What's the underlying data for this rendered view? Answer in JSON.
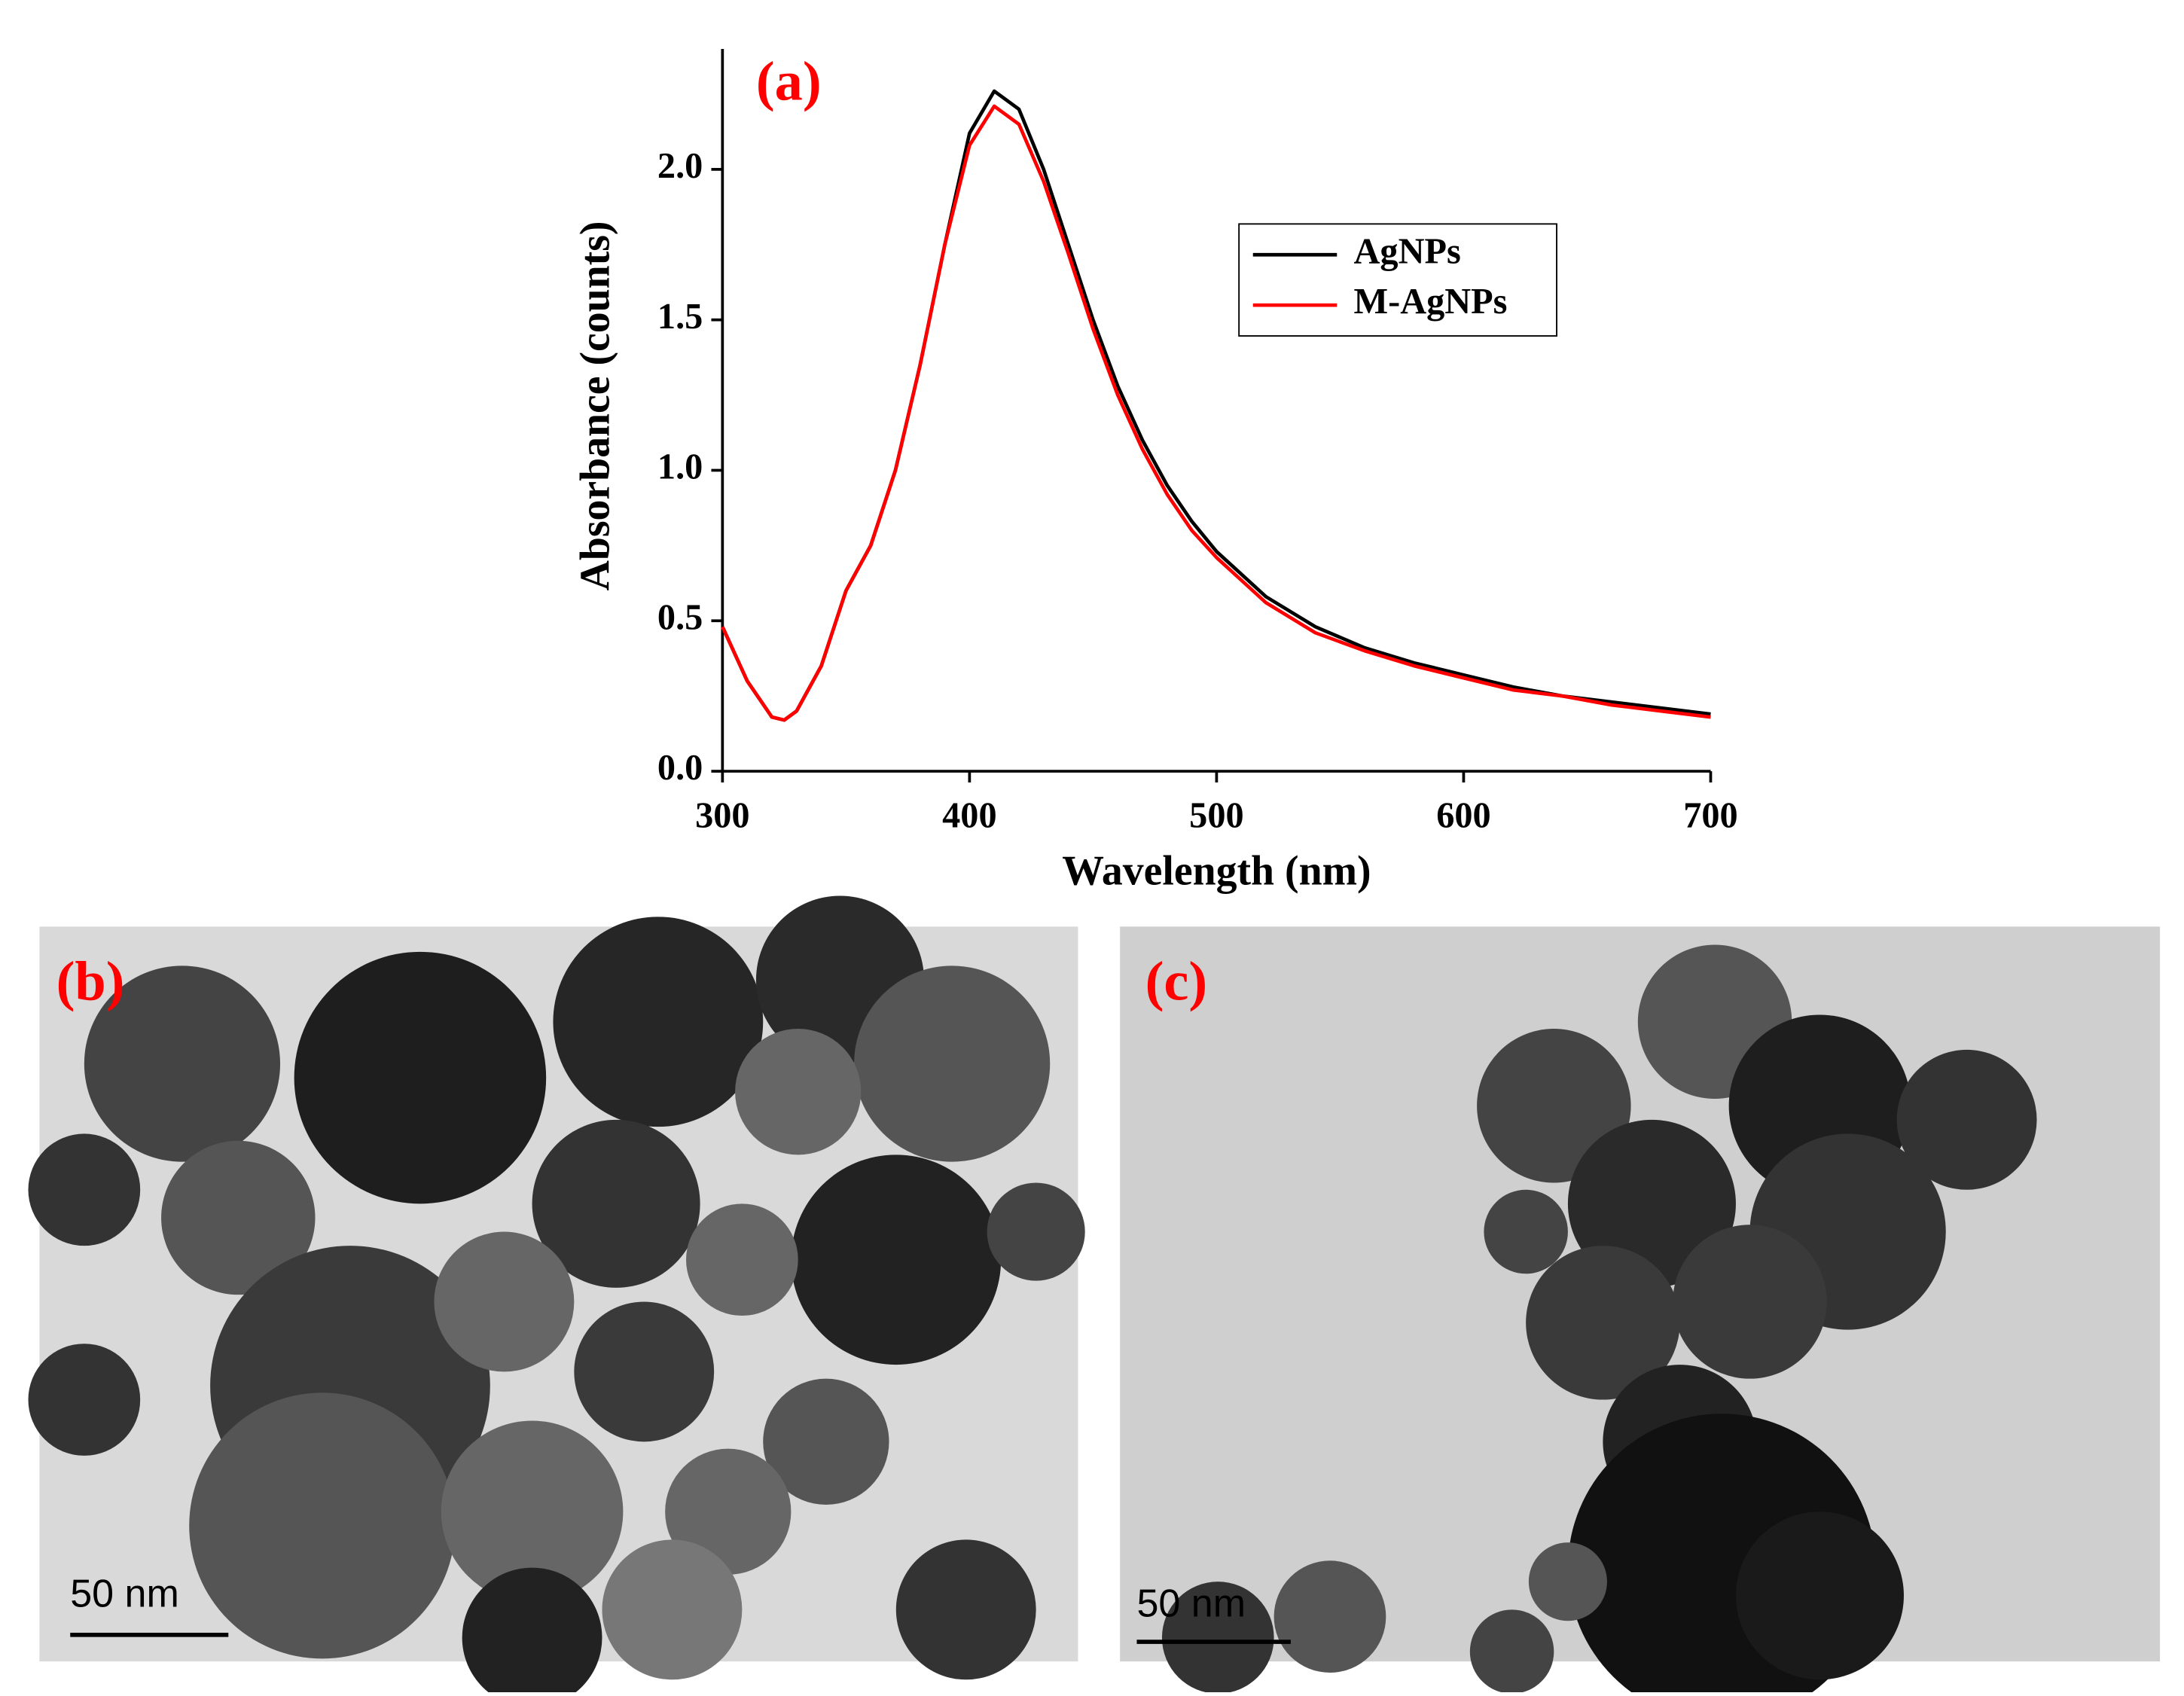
{
  "chart_data": {
    "type": "line",
    "title": "(a)",
    "xlabel": "Wavelength (nm)",
    "ylabel": "Absorbance (counts)",
    "x": [
      300,
      310,
      320,
      325,
      330,
      340,
      350,
      360,
      370,
      380,
      390,
      400,
      410,
      420,
      430,
      440,
      450,
      460,
      470,
      480,
      490,
      500,
      520,
      540,
      560,
      580,
      600,
      620,
      640,
      660,
      680,
      700
    ],
    "series": [
      {
        "name": "AgNPs",
        "color": "#000000",
        "values": [
          0.48,
          0.3,
          0.18,
          0.17,
          0.2,
          0.35,
          0.6,
          0.75,
          1.0,
          1.35,
          1.75,
          2.12,
          2.26,
          2.2,
          2.0,
          1.75,
          1.5,
          1.28,
          1.1,
          0.95,
          0.83,
          0.73,
          0.58,
          0.48,
          0.41,
          0.36,
          0.32,
          0.28,
          0.25,
          0.23,
          0.21,
          0.19
        ]
      },
      {
        "name": "M-AgNPs",
        "color": "#ff0000",
        "values": [
          0.48,
          0.3,
          0.18,
          0.17,
          0.2,
          0.35,
          0.6,
          0.75,
          1.0,
          1.35,
          1.75,
          2.08,
          2.21,
          2.15,
          1.96,
          1.72,
          1.47,
          1.25,
          1.07,
          0.92,
          0.8,
          0.71,
          0.56,
          0.46,
          0.4,
          0.35,
          0.31,
          0.27,
          0.25,
          0.22,
          0.2,
          0.18
        ]
      }
    ],
    "xlim": [
      300,
      700
    ],
    "ylim": [
      0,
      2.4
    ],
    "xticks": [
      300,
      400,
      500,
      600,
      700
    ],
    "yticks": [
      {
        "value": 0,
        "label": "0.0"
      },
      0.5,
      {
        "value": 1,
        "label": "1.0"
      },
      1.5,
      {
        "value": 2,
        "label": "2.0"
      }
    ],
    "legend_position": "upper right"
  },
  "panels": [
    {
      "label": "(b)",
      "scale_bar": "50 nm"
    },
    {
      "label": "(c)",
      "scale_bar": "50 nm"
    }
  ]
}
